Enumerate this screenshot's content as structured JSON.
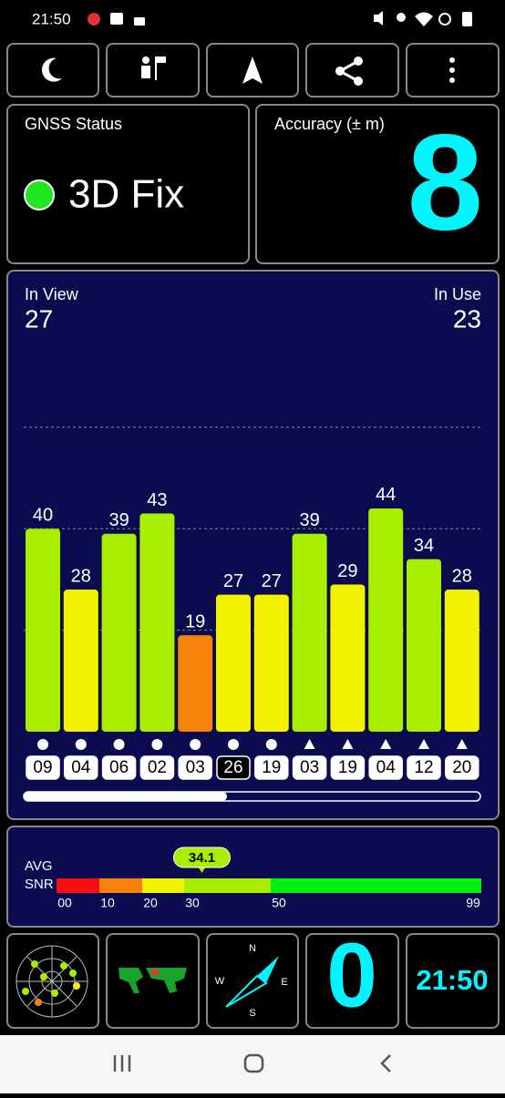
{
  "status_bar": {
    "time": "21:50"
  },
  "gnss_status": {
    "label": "GNSS Status",
    "value": "3D Fix"
  },
  "accuracy": {
    "label": "Accuracy (± m)",
    "value": "8"
  },
  "satellites": {
    "type": "bar",
    "in_view_label": "In View",
    "in_view": "27",
    "in_use_label": "In Use",
    "in_use": "23",
    "categories": [
      "09",
      "04",
      "06",
      "02",
      "03",
      "26",
      "19",
      "03",
      "19",
      "04",
      "12",
      "20"
    ],
    "values": [
      40,
      28,
      39,
      43,
      19,
      27,
      27,
      39,
      29,
      44,
      34,
      28
    ],
    "colors": [
      "#a8ee00",
      "#f2f200",
      "#a8ee00",
      "#a8ee00",
      "#f5820a",
      "#f2f200",
      "#f2f200",
      "#a8ee00",
      "#f2f200",
      "#a8ee00",
      "#a8ee00",
      "#f2f200"
    ],
    "markers": [
      "circle",
      "circle",
      "circle",
      "circle",
      "circle",
      "circle",
      "circle",
      "triangle",
      "triangle",
      "triangle",
      "triangle",
      "triangle"
    ],
    "highlighted": [
      false,
      false,
      false,
      false,
      false,
      true,
      false,
      false,
      false,
      false,
      false,
      false
    ],
    "ylim": [
      0,
      72
    ],
    "yticks": [
      20,
      40,
      60
    ],
    "grid": true
  },
  "snr": {
    "label_1": "AVG",
    "label_2": "SNR",
    "average": 34.1,
    "ticks": [
      {
        "value": 0,
        "label": "00"
      },
      10,
      20,
      30,
      50,
      99
    ],
    "colors": [
      "#f51010",
      "#f5820a",
      "#f2f200",
      "#a8ee00",
      "#00ee10"
    ]
  },
  "tiles": {
    "compass": [
      "N",
      "E",
      "S",
      "W"
    ],
    "speed": "0",
    "clock": "21:50"
  }
}
